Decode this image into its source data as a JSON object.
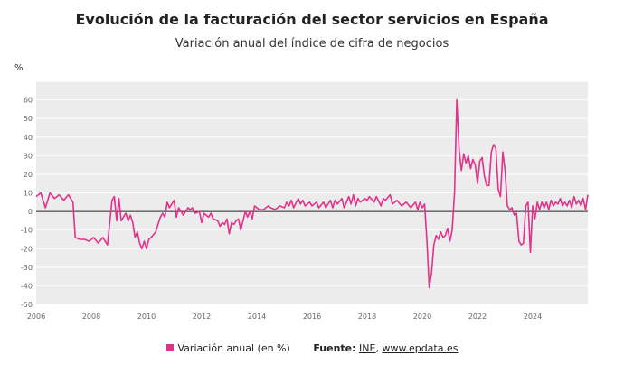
{
  "title": "Evolución de la facturación del sector servicios en España",
  "subtitle": "Variación anual del índice de cifra de negocios",
  "colors": {
    "series": "#e0338a",
    "grid": "#ffffff",
    "plot_bg": "#ececec",
    "zero_line": "#222222"
  },
  "legend": {
    "series_label": "Variación anual (en %)",
    "source_label": "Fuente:",
    "source_ine": "INE",
    "source_sep": ", ",
    "source_site": "www.epdata.es"
  },
  "chart_data": {
    "type": "line",
    "ylabel": "%",
    "xlabel": "",
    "ylim": [
      -50,
      70
    ],
    "xlim": [
      "2006-01",
      "2026-01"
    ],
    "grid": true,
    "legend_position": "bottom",
    "x_ticks": [
      "2006",
      "2008",
      "2010",
      "2012",
      "2014",
      "2016",
      "2018",
      "2020",
      "2022",
      "2024"
    ],
    "y_ticks": [
      -50,
      -40,
      -30,
      -20,
      -10,
      0,
      10,
      20,
      30,
      40,
      50,
      60
    ],
    "series": [
      {
        "name": "Variación anual (en %)",
        "color": "#e0338a",
        "points": [
          [
            "2006-01",
            8
          ],
          [
            "2006-03",
            10
          ],
          [
            "2006-05",
            2
          ],
          [
            "2006-07",
            10
          ],
          [
            "2006-09",
            7
          ],
          [
            "2006-11",
            9
          ],
          [
            "2007-01",
            6
          ],
          [
            "2007-03",
            9
          ],
          [
            "2007-05",
            5
          ],
          [
            "2007-06",
            -14
          ],
          [
            "2007-08",
            -15
          ],
          [
            "2007-10",
            -15
          ],
          [
            "2007-12",
            -16
          ],
          [
            "2008-02",
            -14
          ],
          [
            "2008-04",
            -17
          ],
          [
            "2008-06",
            -14
          ],
          [
            "2008-08",
            -18
          ],
          [
            "2008-10",
            6
          ],
          [
            "2008-11",
            8
          ],
          [
            "2008-12",
            -5
          ],
          [
            "2009-01",
            7
          ],
          [
            "2009-02",
            -5
          ],
          [
            "2009-04",
            -1
          ],
          [
            "2009-05",
            -5
          ],
          [
            "2009-06",
            -2
          ],
          [
            "2009-07",
            -6
          ],
          [
            "2009-08",
            -14
          ],
          [
            "2009-09",
            -11
          ],
          [
            "2009-10",
            -17
          ],
          [
            "2009-11",
            -20
          ],
          [
            "2009-12",
            -16
          ],
          [
            "2010-01",
            -20
          ],
          [
            "2010-02",
            -15
          ],
          [
            "2010-03",
            -14
          ],
          [
            "2010-05",
            -11
          ],
          [
            "2010-06",
            -7
          ],
          [
            "2010-07",
            -3
          ],
          [
            "2010-08",
            -1
          ],
          [
            "2010-09",
            -3
          ],
          [
            "2010-10",
            5
          ],
          [
            "2010-11",
            2
          ],
          [
            "2011-01",
            6
          ],
          [
            "2011-02",
            -3
          ],
          [
            "2011-03",
            2
          ],
          [
            "2011-05",
            -2
          ],
          [
            "2011-07",
            2
          ],
          [
            "2011-08",
            1
          ],
          [
            "2011-09",
            2
          ],
          [
            "2011-10",
            -1
          ],
          [
            "2011-12",
            0
          ],
          [
            "2012-01",
            -6
          ],
          [
            "2012-02",
            -1
          ],
          [
            "2012-04",
            -3
          ],
          [
            "2012-05",
            -1
          ],
          [
            "2012-06",
            -4
          ],
          [
            "2012-08",
            -5
          ],
          [
            "2012-09",
            -8
          ],
          [
            "2012-10",
            -6
          ],
          [
            "2012-11",
            -7
          ],
          [
            "2012-12",
            -4
          ],
          [
            "2013-01",
            -12
          ],
          [
            "2013-02",
            -6
          ],
          [
            "2013-03",
            -7
          ],
          [
            "2013-04",
            -5
          ],
          [
            "2013-05",
            -4
          ],
          [
            "2013-06",
            -10
          ],
          [
            "2013-08",
            0
          ],
          [
            "2013-09",
            -3
          ],
          [
            "2013-10",
            0
          ],
          [
            "2013-11",
            -4
          ],
          [
            "2013-12",
            3
          ],
          [
            "2014-02",
            1
          ],
          [
            "2014-04",
            1
          ],
          [
            "2014-06",
            3
          ],
          [
            "2014-07",
            2
          ],
          [
            "2014-09",
            1
          ],
          [
            "2014-11",
            3
          ],
          [
            "2015-01",
            2
          ],
          [
            "2015-02",
            5
          ],
          [
            "2015-03",
            3
          ],
          [
            "2015-04",
            6
          ],
          [
            "2015-05",
            2
          ],
          [
            "2015-07",
            7
          ],
          [
            "2015-08",
            4
          ],
          [
            "2015-09",
            6
          ],
          [
            "2015-10",
            3
          ],
          [
            "2015-12",
            5
          ],
          [
            "2016-01",
            3
          ],
          [
            "2016-03",
            5
          ],
          [
            "2016-04",
            2
          ],
          [
            "2016-06",
            5
          ],
          [
            "2016-07",
            2
          ],
          [
            "2016-09",
            6
          ],
          [
            "2016-10",
            2
          ],
          [
            "2016-11",
            6
          ],
          [
            "2016-12",
            4
          ],
          [
            "2017-02",
            7
          ],
          [
            "2017-03",
            2
          ],
          [
            "2017-05",
            8
          ],
          [
            "2017-06",
            4
          ],
          [
            "2017-07",
            9
          ],
          [
            "2017-08",
            3
          ],
          [
            "2017-09",
            7
          ],
          [
            "2017-10",
            5
          ],
          [
            "2017-12",
            7
          ],
          [
            "2018-01",
            6
          ],
          [
            "2018-02",
            8
          ],
          [
            "2018-04",
            5
          ],
          [
            "2018-05",
            8
          ],
          [
            "2018-07",
            3
          ],
          [
            "2018-08",
            7
          ],
          [
            "2018-09",
            6
          ],
          [
            "2018-11",
            9
          ],
          [
            "2018-12",
            4
          ],
          [
            "2019-02",
            6
          ],
          [
            "2019-04",
            3
          ],
          [
            "2019-06",
            5
          ],
          [
            "2019-08",
            2
          ],
          [
            "2019-10",
            5
          ],
          [
            "2019-11",
            1
          ],
          [
            "2019-12",
            5
          ],
          [
            "2020-01",
            2
          ],
          [
            "2020-02",
            4
          ],
          [
            "2020-03",
            -16
          ],
          [
            "2020-04",
            -41
          ],
          [
            "2020-05",
            -33
          ],
          [
            "2020-06",
            -18
          ],
          [
            "2020-07",
            -13
          ],
          [
            "2020-08",
            -15
          ],
          [
            "2020-09",
            -11
          ],
          [
            "2020-10",
            -14
          ],
          [
            "2020-11",
            -13
          ],
          [
            "2020-12",
            -9
          ],
          [
            "2021-01",
            -16
          ],
          [
            "2021-02",
            -10
          ],
          [
            "2021-03",
            10
          ],
          [
            "2021-04",
            60
          ],
          [
            "2021-05",
            33
          ],
          [
            "2021-06",
            22
          ],
          [
            "2021-07",
            31
          ],
          [
            "2021-08",
            26
          ],
          [
            "2021-09",
            30
          ],
          [
            "2021-10",
            23
          ],
          [
            "2021-11",
            28
          ],
          [
            "2021-12",
            25
          ],
          [
            "2022-01",
            15
          ],
          [
            "2022-02",
            27
          ],
          [
            "2022-03",
            29
          ],
          [
            "2022-04",
            19
          ],
          [
            "2022-05",
            14
          ],
          [
            "2022-06",
            14
          ],
          [
            "2022-07",
            32
          ],
          [
            "2022-08",
            36
          ],
          [
            "2022-09",
            34
          ],
          [
            "2022-10",
            12
          ],
          [
            "2022-11",
            8
          ],
          [
            "2022-12",
            32
          ],
          [
            "2023-01",
            22
          ],
          [
            "2023-02",
            3
          ],
          [
            "2023-03",
            1
          ],
          [
            "2023-04",
            2
          ],
          [
            "2023-05",
            -2
          ],
          [
            "2023-06",
            -1
          ],
          [
            "2023-07",
            -16
          ],
          [
            "2023-08",
            -18
          ],
          [
            "2023-09",
            -17
          ],
          [
            "2023-10",
            3
          ],
          [
            "2023-11",
            5
          ],
          [
            "2023-12",
            -22
          ],
          [
            "2024-01",
            3
          ],
          [
            "2024-02",
            -4
          ],
          [
            "2024-03",
            5
          ],
          [
            "2024-04",
            1
          ],
          [
            "2024-05",
            5
          ],
          [
            "2024-06",
            2
          ],
          [
            "2024-07",
            5
          ],
          [
            "2024-08",
            1
          ],
          [
            "2024-09",
            6
          ],
          [
            "2024-10",
            3
          ],
          [
            "2024-11",
            5
          ],
          [
            "2024-12",
            4
          ],
          [
            "2025-01",
            7
          ],
          [
            "2025-02",
            3
          ],
          [
            "2025-03",
            5
          ],
          [
            "2025-04",
            3
          ],
          [
            "2025-05",
            6
          ],
          [
            "2025-06",
            2
          ],
          [
            "2025-07",
            8
          ],
          [
            "2025-08",
            4
          ],
          [
            "2025-09",
            6
          ],
          [
            "2025-10",
            3
          ],
          [
            "2025-11",
            7
          ],
          [
            "2025-12",
            1
          ],
          [
            "2026-01",
            9
          ]
        ]
      }
    ]
  }
}
